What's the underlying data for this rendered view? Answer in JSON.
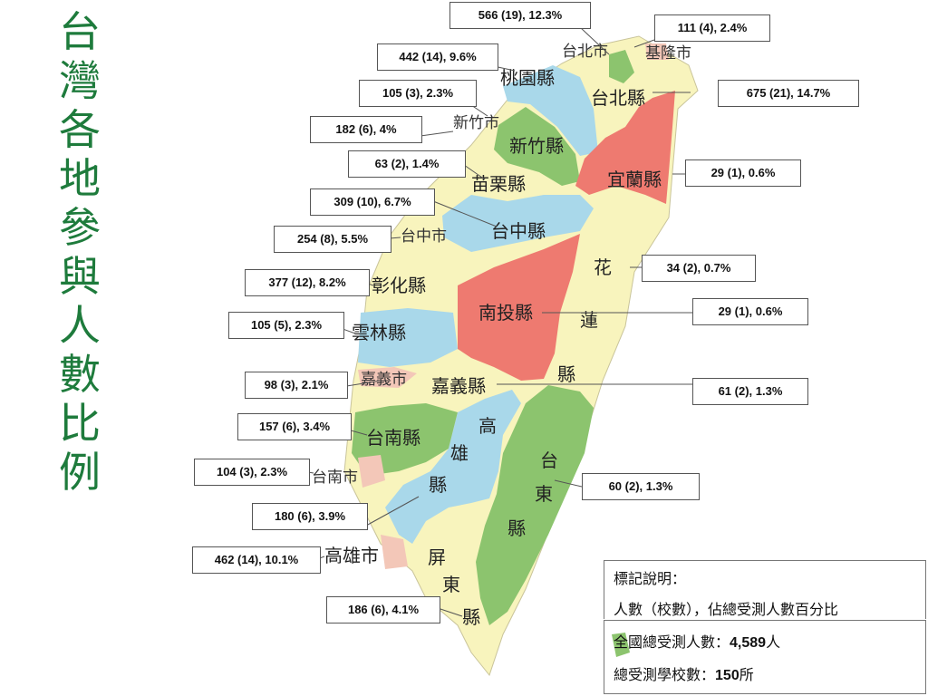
{
  "title": "台灣各地參與人數比例",
  "colors": {
    "blue": "#a9d8ea",
    "green": "#8cc46e",
    "yellow": "#f8f4bd",
    "red": "#ee7a70",
    "pink": "#f3c7b8",
    "title": "#1e7b3c"
  },
  "regions": {
    "taipei_city": "台北市",
    "keelung": "基隆市",
    "taoyuan": "桃園縣",
    "taipei_county": "台北縣",
    "hsinchu_city": "新竹市",
    "hsinchu_county": "新竹縣",
    "yilan": "宜蘭縣",
    "miaoli": "苗栗縣",
    "taichung_city": "台中市",
    "taichung_county": "台中縣",
    "hualien": [
      "花",
      "蓮",
      "縣"
    ],
    "changhua": "彰化縣",
    "nantou": "南投縣",
    "yunlin": "雲林縣",
    "chiayi_city": "嘉義市",
    "chiayi_county": "嘉義縣",
    "tainan_county": "台南縣",
    "kaohsiung_county": [
      "高",
      "雄",
      "縣"
    ],
    "taitung": [
      "台",
      "東",
      "縣"
    ],
    "tainan_city": "台南市",
    "kaohsiung_city": "高雄市",
    "pingtung": [
      "屏",
      "東",
      "縣"
    ]
  },
  "callouts": {
    "taipei_city": "566 (19), 12.3%",
    "keelung": "111 (4), 2.4%",
    "taoyuan": "442 (14), 9.6%",
    "hsinchu_city": "105 (3), 2.3%",
    "taipei_county": "675 (21), 14.7%",
    "hsinchu_county": "182 (6), 4%",
    "miaoli": "63 (2), 1.4%",
    "yilan": "29 (1), 0.6%",
    "taichung_county": "309 (10), 6.7%",
    "taichung_city": "254 (8), 5.5%",
    "hualien": "34 (2), 0.7%",
    "changhua": "377 (12), 8.2%",
    "nantou": "29 (1), 0.6%",
    "yunlin": "105 (5), 2.3%",
    "chiayi_city": "98 (3), 2.1%",
    "chiayi_county": "61 (2), 1.3%",
    "tainan_county": "157 (6), 3.4%",
    "tainan_city": "104 (3), 2.3%",
    "taitung": "60 (2), 1.3%",
    "kaohsiung_county": "180 (6), 3.9%",
    "kaohsiung_city": "462 (14), 10.1%",
    "pingtung": "186 (6), 4.1%"
  },
  "legend": {
    "heading": "標記說明：",
    "format": "人數（校數），佔總受測人數百分比",
    "total_people_label": "全國總受測人數：",
    "total_people_value": "4,589",
    "total_people_unit": "人",
    "total_schools_label": "總受測學校數：",
    "total_schools_value": "150",
    "total_schools_unit": "所"
  }
}
